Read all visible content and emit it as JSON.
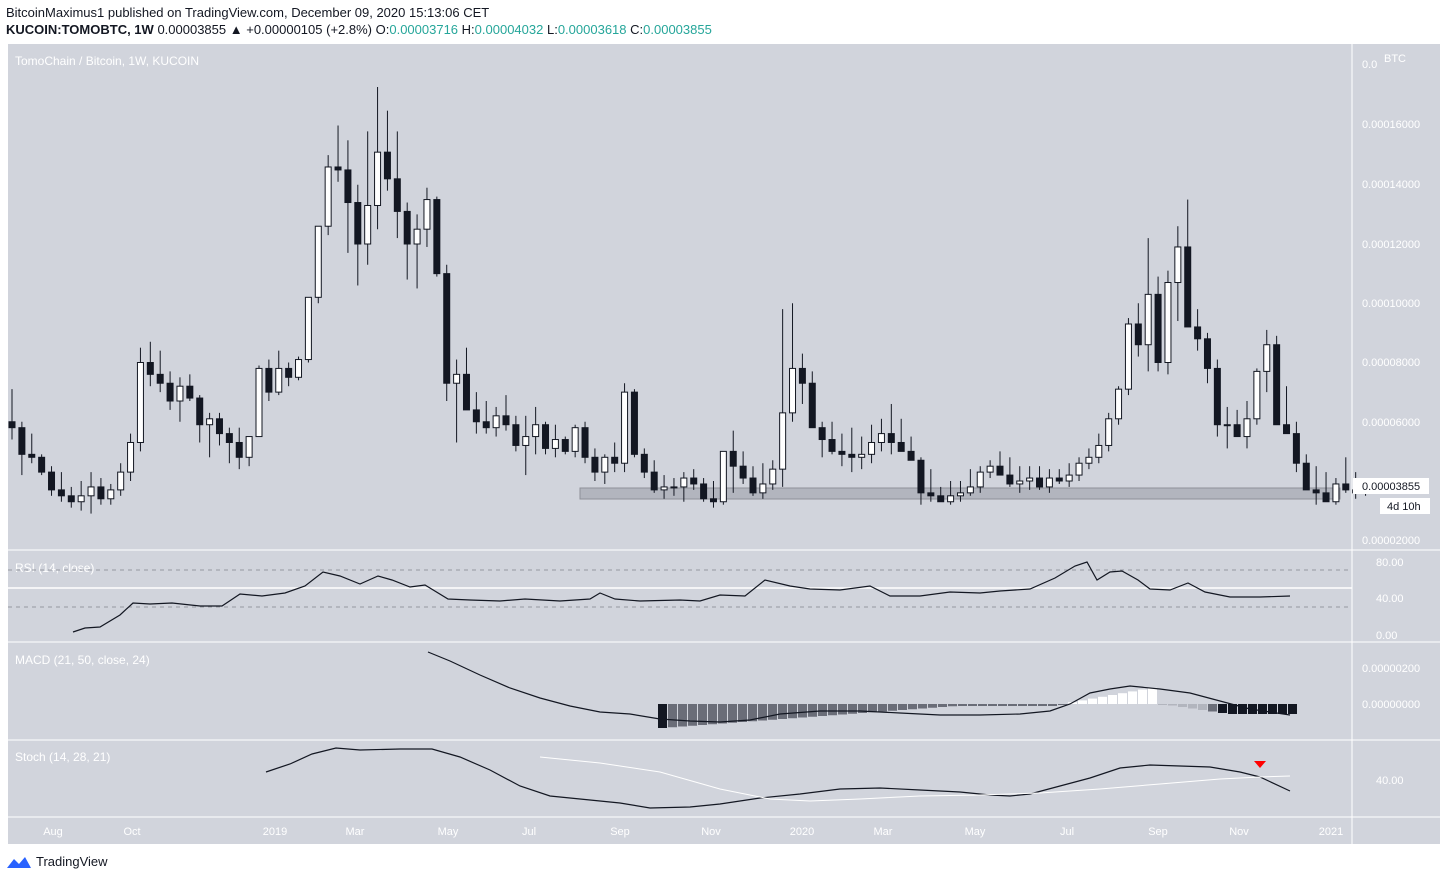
{
  "header": {
    "published_line": "BitcoinMaximus1 published on TradingView.com, December 09, 2020 15:13:06 CET",
    "symbol": "KUCOIN:TOMOBTC, 1W",
    "last": "0.00003855",
    "change": "▲ +0.00000105 (+2.8%)",
    "o_label": "O:",
    "o_value": "0.00003716",
    "h_label": "H:",
    "h_value": "0.00004032",
    "l_label": "L:",
    "l_value": "0.00003618",
    "c_label": "C:",
    "c_value": "0.00003855"
  },
  "main": {
    "legend": "TomoChain / Bitcoin, 1W, KUCOIN",
    "currency": "BTC",
    "price_label": "0.00003855",
    "countdown": "4d 10h",
    "y_ticks": [
      "0.0",
      "0.00016000",
      "0.00014000",
      "0.00012000",
      "0.00010000",
      "0.00008000",
      "0.00006000",
      "0.00002000"
    ]
  },
  "rsi": {
    "legend": "RSI (14, close)",
    "ticks": [
      "80.00",
      "40.00",
      "0.00"
    ]
  },
  "macd": {
    "legend": "MACD (21, 50, close, 24)",
    "ticks": [
      "0.00000200",
      "0.00000000"
    ]
  },
  "stoch": {
    "legend": "Stoch (14, 28, 21)",
    "ticks": [
      "40.00"
    ]
  },
  "time_axis": [
    "Aug",
    "Oct",
    "2019",
    "Mar",
    "May",
    "Jul",
    "Sep",
    "Nov",
    "2020",
    "Mar",
    "May",
    "Jul",
    "Sep",
    "Nov",
    "2021"
  ],
  "footer": {
    "brand": "TradingView"
  },
  "colors": {
    "background": "#d1d4dc",
    "up_body": "#ffffff",
    "down_body": "#131722",
    "support_zone": "#b2b5be",
    "signal_marker": "#ff0000"
  },
  "chart_data": [
    {
      "type": "candlestick",
      "title": "TomoChain / Bitcoin, 1W, KUCOIN",
      "ylabel": "BTC",
      "ylim": [
        1.5e-05,
        0.000175
      ],
      "x_range": [
        "2018-07",
        "2020-12"
      ],
      "support_zone": [
        3.31e-05,
        3.64e-05
      ],
      "approx_path": [
        {
          "date": "2018-07",
          "close": 6e-05
        },
        {
          "date": "2018-08",
          "close": 3.2e-05
        },
        {
          "date": "2018-10",
          "close": 7.8e-05
        },
        {
          "date": "2018-12",
          "close": 6.5e-05
        },
        {
          "date": "2019-02",
          "close": 0.00015
        },
        {
          "date": "2019-03",
          "close": 0.00015
        },
        {
          "date": "2019-04",
          "close": 0.00013
        },
        {
          "date": "2019-05",
          "close": 6.8e-05
        },
        {
          "date": "2019-07",
          "close": 5.5e-05
        },
        {
          "date": "2019-09",
          "close": 3.9e-05
        },
        {
          "date": "2019-11",
          "close": 3.6e-05
        },
        {
          "date": "2019-12",
          "close": 6.8e-05
        },
        {
          "date": "2020-02",
          "close": 5.5e-05
        },
        {
          "date": "2020-03",
          "close": 3.6e-05
        },
        {
          "date": "2020-05",
          "close": 4e-05
        },
        {
          "date": "2020-07",
          "close": 6e-05
        },
        {
          "date": "2020-08",
          "close": 0.000118
        },
        {
          "date": "2020-09",
          "close": 6.2e-05
        },
        {
          "date": "2020-10",
          "close": 8.5e-05
        },
        {
          "date": "2020-11",
          "close": 3.8e-05
        },
        {
          "date": "2020-12",
          "close": 3.855e-05
        }
      ]
    },
    {
      "type": "line",
      "title": "RSI (14, close)",
      "ylim": [
        0,
        100
      ],
      "levels": [
        70,
        50,
        30
      ],
      "last": 42
    },
    {
      "type": "bar",
      "title": "MACD (21, 50, close, 24)",
      "note": "histogram plus MACD line; last value below 0"
    },
    {
      "type": "line",
      "title": "Stoch (14, 28, 21)",
      "series": [
        {
          "name": "%K"
        },
        {
          "name": "%D"
        }
      ]
    }
  ]
}
